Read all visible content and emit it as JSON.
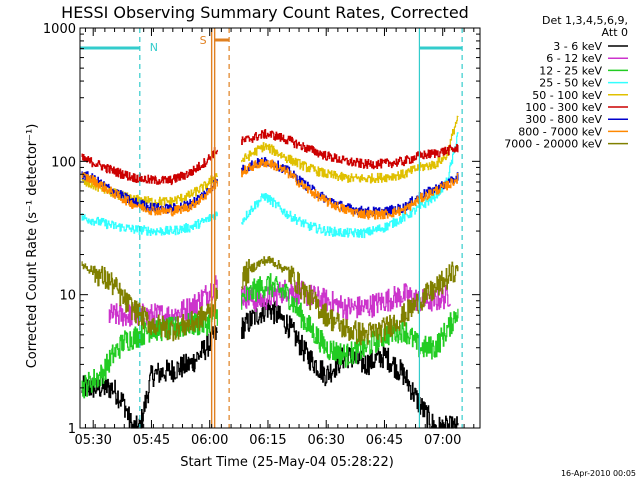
{
  "chart_data": {
    "type": "line",
    "title": "HESSI Observing Summary Count Rates, Corrected",
    "xlabel": "Start Time (25-May-04 05:28:22)",
    "ylabel": "Corrected Count Rate (s⁻¹ detector⁻¹)",
    "yscale": "log",
    "ylim": [
      1,
      1000
    ],
    "xlim_minutes": [
      -3.4,
      99.6
    ],
    "x_ticks": [
      {
        "m": 0,
        "label": "05:30"
      },
      {
        "m": 15,
        "label": "05:45"
      },
      {
        "m": 30,
        "label": "06:00"
      },
      {
        "m": 45,
        "label": "06:15"
      },
      {
        "m": 60,
        "label": "06:30"
      },
      {
        "m": 75,
        "label": "06:45"
      },
      {
        "m": 90,
        "label": "07:00"
      }
    ],
    "y_ticks": [
      {
        "v": 1,
        "label": "1"
      },
      {
        "v": 10,
        "label": "10"
      },
      {
        "v": 100,
        "label": "100"
      },
      {
        "v": 1000,
        "label": "1000"
      }
    ],
    "legend": {
      "header_lines": [
        "Det 1,3,4,5,6,9,",
        "Att 0"
      ],
      "position": "right"
    },
    "flags": [
      {
        "label": "N",
        "color": "#33cccc"
      },
      {
        "label": "S",
        "color": "#e08020"
      }
    ],
    "night_start": [
      -3.4,
      84
    ],
    "night_end": [
      12,
      95
    ],
    "saa_window": [
      30.5,
      35
    ],
    "gap": [
      32,
      38
    ],
    "series": [
      {
        "name": "3 - 6 keV",
        "color": "#000000",
        "x": [
          -3,
          5,
          8,
          10,
          12,
          15,
          20,
          25,
          29,
          31.5,
          38,
          42,
          45,
          50,
          55,
          60,
          65,
          70,
          75,
          80,
          84,
          88,
          92,
          94
        ],
        "y": [
          2,
          2,
          1.5,
          1,
          1,
          2.5,
          2.7,
          3,
          4,
          5,
          5.5,
          7,
          8,
          6,
          3.5,
          2.5,
          3.5,
          3,
          3.5,
          2.5,
          1.5,
          1,
          1,
          1
        ]
      },
      {
        "name": "6 - 12 keV",
        "color": "#cc33cc",
        "x": [
          4,
          8,
          12,
          15,
          20,
          25,
          29,
          31.5,
          38,
          42,
          45,
          50,
          55,
          60,
          65,
          70,
          75,
          80,
          84,
          88,
          92
        ],
        "y": [
          7,
          7,
          7,
          7,
          7,
          8,
          10,
          12,
          10,
          9,
          9.5,
          11,
          10,
          9,
          8,
          8,
          9,
          10,
          9,
          9,
          10
        ]
      },
      {
        "name": "12 - 25 keV",
        "color": "#22cc22",
        "x": [
          -3,
          2,
          5,
          8,
          12,
          15,
          20,
          25,
          29,
          31.5,
          38,
          42,
          45,
          50,
          55,
          60,
          65,
          70,
          75,
          80,
          84,
          88,
          92,
          94
        ],
        "y": [
          2,
          2.5,
          3.5,
          4.5,
          5,
          5.5,
          5.5,
          6,
          6,
          7,
          9,
          11,
          12,
          10,
          6,
          4,
          3.5,
          4,
          5,
          5.5,
          4,
          4,
          6,
          8
        ]
      },
      {
        "name": "25 - 50 keV",
        "color": "#33ffff",
        "x": [
          -3,
          0,
          5,
          10,
          15,
          20,
          25,
          29,
          31.5,
          38,
          41,
          44,
          46,
          50,
          55,
          60,
          65,
          70,
          75,
          80,
          84,
          88,
          91,
          93,
          94
        ],
        "y": [
          38,
          36,
          33,
          31,
          30,
          30,
          32,
          36,
          40,
          35,
          45,
          55,
          50,
          40,
          33,
          30,
          29,
          29,
          32,
          38,
          45,
          55,
          70,
          120,
          180
        ]
      },
      {
        "name": "50 - 100 keV",
        "color": "#e0c000",
        "x": [
          -3,
          0,
          5,
          10,
          15,
          20,
          25,
          29,
          31.5,
          38,
          41,
          44,
          46,
          50,
          55,
          60,
          65,
          70,
          75,
          80,
          84,
          88,
          91,
          93,
          94
        ],
        "y": [
          70,
          66,
          58,
          52,
          50,
          50,
          56,
          66,
          78,
          100,
          115,
          130,
          122,
          105,
          90,
          80,
          75,
          74,
          76,
          80,
          90,
          95,
          110,
          180,
          220
        ]
      },
      {
        "name": "100 - 300 keV",
        "color": "#cc0000",
        "x": [
          -3,
          0,
          5,
          10,
          15,
          20,
          25,
          29,
          31.5,
          38,
          41,
          44,
          46,
          50,
          55,
          60,
          65,
          70,
          75,
          80,
          84,
          88,
          92,
          94
        ],
        "y": [
          105,
          98,
          85,
          76,
          72,
          72,
          82,
          100,
          120,
          140,
          150,
          160,
          158,
          145,
          125,
          110,
          100,
          95,
          96,
          100,
          110,
          115,
          122,
          125
        ]
      },
      {
        "name": "300 - 800 keV",
        "color": "#0000cc",
        "x": [
          -3,
          0,
          5,
          10,
          15,
          20,
          25,
          29,
          31.5,
          38,
          41,
          44,
          46,
          50,
          55,
          60,
          65,
          70,
          75,
          80,
          84,
          88,
          92,
          94
        ],
        "y": [
          80,
          74,
          60,
          50,
          45,
          44,
          48,
          58,
          70,
          85,
          95,
          100,
          98,
          85,
          65,
          52,
          45,
          42,
          42,
          45,
          55,
          62,
          70,
          78
        ]
      },
      {
        "name": "800 - 7000 keV",
        "color": "#ff8800",
        "x": [
          -3,
          0,
          5,
          10,
          15,
          20,
          25,
          29,
          31.5,
          38,
          41,
          44,
          46,
          50,
          55,
          60,
          65,
          70,
          75,
          80,
          84,
          88,
          92,
          94
        ],
        "y": [
          78,
          72,
          58,
          48,
          43,
          42,
          46,
          56,
          68,
          82,
          92,
          98,
          95,
          82,
          62,
          50,
          43,
          40,
          40,
          43,
          52,
          60,
          68,
          76
        ]
      },
      {
        "name": "7000 - 20000 keV",
        "color": "#808000",
        "x": [
          -3,
          0,
          5,
          8,
          12,
          15,
          20,
          25,
          29,
          31.5,
          38,
          41,
          44,
          46,
          50,
          55,
          60,
          65,
          70,
          75,
          80,
          84,
          88,
          92,
          94
        ],
        "y": [
          17,
          15,
          12,
          9,
          7,
          6,
          5.5,
          6,
          7,
          9,
          13,
          16,
          18,
          18,
          15,
          10,
          7,
          5.5,
          5,
          5.5,
          7,
          9,
          11,
          14,
          16
        ]
      }
    ],
    "timestamp": "16-Apr-2010 00:05"
  }
}
